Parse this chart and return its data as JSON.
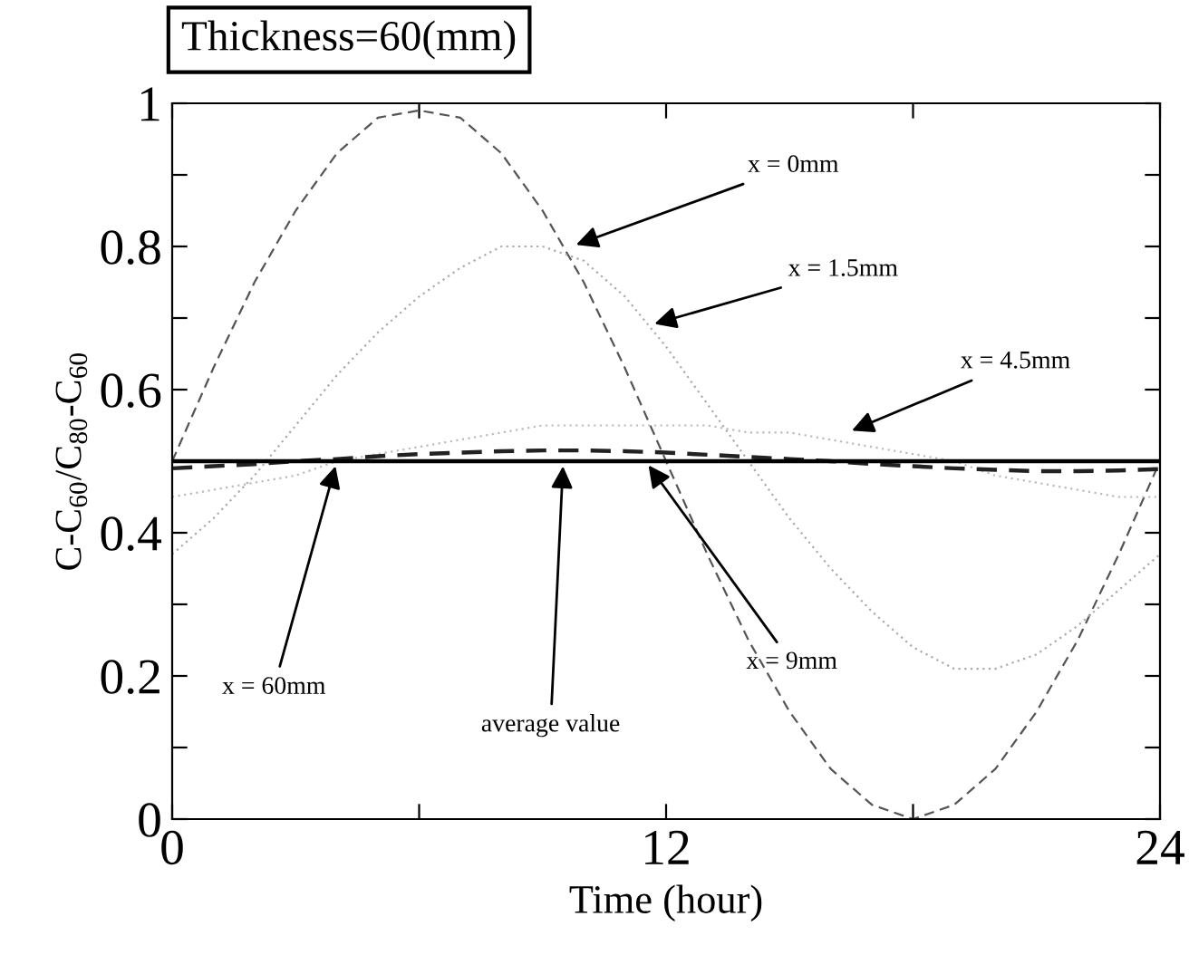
{
  "chart_data": {
    "type": "line",
    "title": "Thickness=60(mm)",
    "xlabel": "Time (hour)",
    "ylabel": "C-C$_{60}$/C$_{80}$-C$_{60}$",
    "xlim": [
      0,
      24
    ],
    "ylim": [
      0,
      1
    ],
    "xticks": [
      0,
      {
        "value": 6,
        "label": null
      },
      12,
      {
        "value": 18,
        "label": null
      },
      24
    ],
    "yticks": [
      0,
      {
        "value": 0.1,
        "label": null
      },
      0.2,
      {
        "value": 0.3,
        "label": null
      },
      0.4,
      {
        "value": 0.5,
        "label": null
      },
      0.6,
      {
        "value": 0.7,
        "label": null
      },
      0.8,
      {
        "value": 0.9,
        "label": null
      },
      1
    ],
    "grid": false,
    "legend": false,
    "x": [
      0,
      1,
      2,
      3,
      4,
      5,
      6,
      7,
      8,
      9,
      10,
      11,
      12,
      13,
      14,
      15,
      16,
      17,
      18,
      19,
      20,
      21,
      22,
      23,
      24
    ],
    "series": [
      {
        "color": "#555555",
        "line_style": "dashed",
        "values": [
          0.5,
          0.63,
          0.75,
          0.85,
          0.93,
          0.98,
          0.99,
          0.98,
          0.93,
          0.85,
          0.75,
          0.63,
          0.5,
          0.37,
          0.25,
          0.15,
          0.07,
          0.02,
          0.0,
          0.02,
          0.07,
          0.15,
          0.25,
          0.37,
          0.5
        ]
      },
      {
        "color": "#aaaaaa",
        "line_style": "dotted",
        "values": [
          0.37,
          0.42,
          0.48,
          0.55,
          0.62,
          0.68,
          0.73,
          0.77,
          0.8,
          0.8,
          0.78,
          0.73,
          0.66,
          0.58,
          0.5,
          0.42,
          0.35,
          0.29,
          0.24,
          0.21,
          0.21,
          0.23,
          0.27,
          0.32,
          0.37
        ]
      },
      {
        "color": "#bbbbbb",
        "line_style": "dotted",
        "values": [
          0.45,
          0.46,
          0.47,
          0.48,
          0.5,
          0.51,
          0.52,
          0.53,
          0.54,
          0.55,
          0.55,
          0.55,
          0.55,
          0.55,
          0.54,
          0.54,
          0.53,
          0.52,
          0.51,
          0.5,
          0.48,
          0.47,
          0.46,
          0.45,
          0.45
        ]
      },
      {
        "color": "#222222",
        "line_style": "dashed",
        "values": [
          0.49,
          0.493,
          0.496,
          0.5,
          0.503,
          0.507,
          0.51,
          0.512,
          0.514,
          0.515,
          0.515,
          0.514,
          0.512,
          0.509,
          0.506,
          0.503,
          0.5,
          0.496,
          0.493,
          0.49,
          0.488,
          0.486,
          0.486,
          0.487,
          0.489
        ]
      },
      {
        "color": "#000000",
        "line_style": "solid",
        "values": [
          0.5,
          0.5,
          0.5,
          0.5,
          0.5,
          0.5,
          0.5,
          0.5,
          0.5,
          0.5,
          0.5,
          0.5,
          0.5,
          0.5,
          0.5,
          0.5,
          0.5,
          0.5,
          0.5,
          0.5,
          0.5,
          0.5,
          0.5,
          0.5,
          0.5
        ]
      }
    ],
    "annotations": [
      {
        "text": "x = 0mm",
        "x": 9.7,
        "y": 0.8
      },
      {
        "text": "x = 1.5mm",
        "x": 11.6,
        "y": 0.69
      },
      {
        "text": "x = 4.5mm",
        "x": 16.4,
        "y": 0.54
      },
      {
        "text": "x = 9mm",
        "x": 11.5,
        "y": 0.5
      },
      {
        "text": "average value",
        "x": 9.5,
        "y": 0.5
      },
      {
        "text": "x = 60mm",
        "x": 4.0,
        "y": 0.5
      }
    ]
  }
}
